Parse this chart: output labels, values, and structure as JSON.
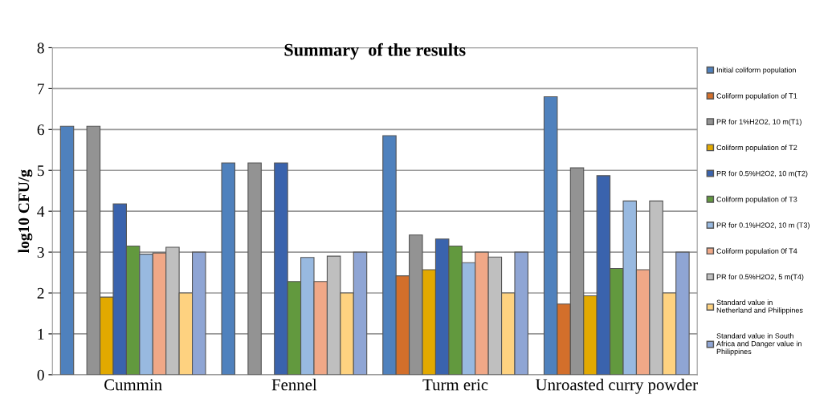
{
  "chart_data": {
    "type": "bar",
    "title": "Summary  of the results",
    "ylabel": "log10 CFU/g",
    "categories": [
      "Cummin",
      "Fennel",
      "Turm eric",
      "Unroasted curry powder"
    ],
    "series": [
      {
        "name": "Initial coliform population",
        "color": "#4f81bd",
        "values": [
          6.08,
          5.18,
          5.85,
          6.8
        ]
      },
      {
        "name": "Coliform population of T1",
        "color": "#d36f2b",
        "values": [
          null,
          null,
          2.42,
          1.73
        ]
      },
      {
        "name": "PR for 1%H2O2, 10 m(T1)",
        "color": "#939393",
        "values": [
          6.08,
          5.18,
          3.42,
          5.06
        ]
      },
      {
        "name": "Coliform population of T2",
        "color": "#e2a900",
        "values": [
          1.9,
          null,
          2.57,
          1.93
        ]
      },
      {
        "name": "PR for 0.5%H2O2, 10 m(T2)",
        "color": "#3a63ad",
        "values": [
          4.18,
          5.18,
          3.32,
          4.87
        ]
      },
      {
        "name": "Coliform population of T3",
        "color": "#62993e",
        "values": [
          3.15,
          2.28,
          3.15,
          2.6
        ]
      },
      {
        "name": "PR for 0.1%H2O2, 10 m (T3)",
        "color": "#98b9e0",
        "values": [
          2.95,
          2.87,
          2.74,
          4.25
        ]
      },
      {
        "name": "Coliform population 0f T4",
        "color": "#f0a887",
        "values": [
          2.98,
          2.28,
          3.0,
          2.57
        ]
      },
      {
        "name": "PR for 0.5%H2O2, 5 m(T4)",
        "color": "#bfbfbf",
        "values": [
          3.12,
          2.9,
          2.88,
          4.25
        ]
      },
      {
        "name": "Standard value in Netherland and Philippines",
        "color": "#fed280",
        "values": [
          2,
          2,
          2,
          2
        ]
      },
      {
        "name": "Standard value in South Africa and Danger value in Philippines",
        "color": "#8fa5d4",
        "values": [
          3,
          3,
          3,
          3
        ]
      }
    ],
    "ylim": [
      0,
      8
    ],
    "yticks": [
      0,
      1,
      2,
      3,
      4,
      5,
      6,
      7,
      8
    ],
    "grid": "y",
    "legend": "right"
  }
}
